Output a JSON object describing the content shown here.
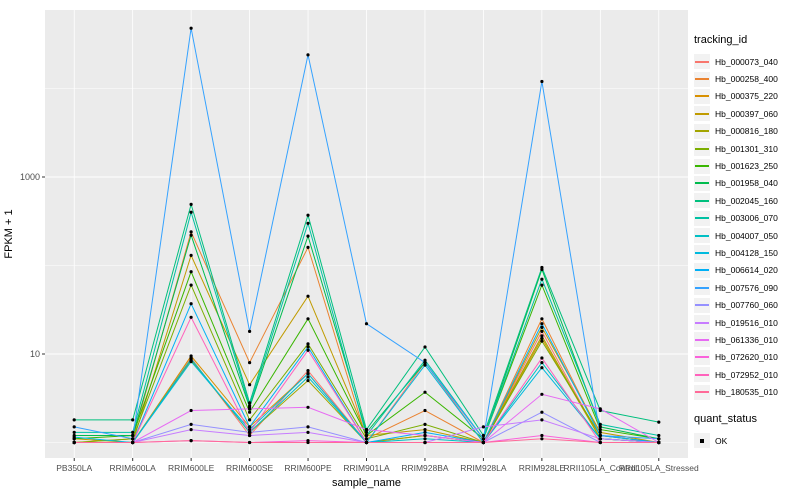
{
  "chart_data": {
    "type": "line",
    "title": "",
    "xlabel": "sample_name",
    "ylabel": "FPKM + 1",
    "y_scale": "log10",
    "y_tick_values": [
      10,
      1000
    ],
    "y_tick_labels": [
      "10",
      "1000"
    ],
    "y_minor_gridline_values": [
      1,
      100,
      10000
    ],
    "ylim": [
      0.65,
      60000
    ],
    "grid": true,
    "panel_bg_color": "#EBEBEB",
    "gridline_color": "#FFFFFF",
    "point_color": "#000000",
    "tick_label_color": "#4D4D4D",
    "legend_position": "right",
    "legend_title": "tracking_id",
    "legend2_title": "quant_status",
    "legend2_items": [
      "OK"
    ],
    "categories": [
      "PB350LA",
      "RRIM600LA",
      "RRIM600LE",
      "RRIM600SE",
      "RRIM600PE",
      "RRIM901LA",
      "RRIM928BA",
      "RRIM928LA",
      "RRIM928LE",
      "RRII105LA_Control",
      "RRII105LA_Stressed"
    ],
    "series": [
      {
        "name": "Hb_000073_040",
        "color": "#F8766D",
        "values": [
          1.0,
          1.0,
          9,
          1.2,
          6.5,
          1.0,
          8,
          1.0,
          18,
          1.1,
          1.0
        ]
      },
      {
        "name": "Hb_000258_400",
        "color": "#EA8331",
        "values": [
          1.0,
          1.1,
          240,
          8,
          160,
          1.1,
          2.3,
          1.0,
          25,
          1.2,
          1.0
        ]
      },
      {
        "name": "Hb_000375_220",
        "color": "#D89000",
        "values": [
          1.0,
          1.0,
          9.5,
          1.5,
          6,
          1.0,
          1.2,
          1.0,
          15,
          1.1,
          1.0
        ]
      },
      {
        "name": "Hb_000397_060",
        "color": "#C09B00",
        "values": [
          1.1,
          1.0,
          130,
          4.5,
          45,
          1.2,
          1.4,
          1.0,
          20,
          1.3,
          1.0
        ]
      },
      {
        "name": "Hb_000816_180",
        "color": "#A3A500",
        "values": [
          1.0,
          1.0,
          8.5,
          1.3,
          5,
          1.0,
          1.2,
          1.0,
          16,
          1.1,
          1.0
        ]
      },
      {
        "name": "Hb_001301_310",
        "color": "#7CAE00",
        "values": [
          1.0,
          1.1,
          60,
          1.8,
          13,
          1.1,
          1.6,
          1.0,
          14,
          1.2,
          1.0
        ]
      },
      {
        "name": "Hb_001623_250",
        "color": "#39B600",
        "values": [
          1.1,
          1.2,
          85,
          2.2,
          25,
          1.2,
          3.7,
          1.1,
          60,
          1.4,
          1.1
        ]
      },
      {
        "name": "Hb_001958_040",
        "color": "#00BB4E",
        "values": [
          1.2,
          1.2,
          220,
          2.5,
          215,
          1.3,
          8,
          1.1,
          90,
          1.5,
          1.1
        ]
      },
      {
        "name": "Hb_002045_160",
        "color": "#00BF7D",
        "values": [
          1.8,
          1.8,
          490,
          2.8,
          370,
          1.4,
          12,
          1.2,
          95,
          2.3,
          1.7
        ]
      },
      {
        "name": "Hb_003006_070",
        "color": "#00C1A3",
        "values": [
          1.3,
          1.3,
          400,
          2.6,
          300,
          1.2,
          8.5,
          1.1,
          70,
          1.6,
          1.2
        ]
      },
      {
        "name": "Hb_004007_050",
        "color": "#00BFC4",
        "values": [
          1.0,
          1.0,
          8.8,
          1.3,
          5.5,
          1.0,
          1.1,
          1.0,
          8,
          1.1,
          1.0
        ]
      },
      {
        "name": "Hb_004128_150",
        "color": "#00BADE",
        "values": [
          1.15,
          1.0,
          8.2,
          1.4,
          6,
          1.0,
          7.5,
          1.0,
          7,
          1.1,
          1.0
        ]
      },
      {
        "name": "Hb_006614_020",
        "color": "#00B0F6",
        "values": [
          1.0,
          1.0,
          37,
          1.5,
          12,
          1.0,
          1.3,
          1.0,
          22,
          1.2,
          1.0
        ]
      },
      {
        "name": "Hb_007576_090",
        "color": "#35A2FF",
        "values": [
          1.5,
          1.1,
          48000,
          18,
          24000,
          22,
          8,
          1.1,
          12000,
          1.2,
          1.1
        ]
      },
      {
        "name": "Hb_007760_060",
        "color": "#9590FF",
        "values": [
          1.0,
          1.0,
          1.6,
          1.3,
          1.5,
          1.0,
          1.0,
          1.0,
          2.2,
          1.0,
          1.0
        ]
      },
      {
        "name": "Hb_019516_010",
        "color": "#C77CFF",
        "values": [
          1.0,
          1.0,
          1.4,
          1.2,
          1.3,
          1.0,
          1.0,
          1.5,
          1.8,
          1.1,
          1.0
        ]
      },
      {
        "name": "Hb_061336_010",
        "color": "#E76BF3",
        "values": [
          1.0,
          1.0,
          2.3,
          2.4,
          2.5,
          1.4,
          1.2,
          1.0,
          3.5,
          2.4,
          1.0
        ]
      },
      {
        "name": "Hb_072620_010",
        "color": "#FA62DB",
        "values": [
          1.0,
          1.0,
          1.05,
          1.0,
          1.05,
          1.0,
          1.0,
          1.0,
          1.2,
          1.0,
          1.0
        ]
      },
      {
        "name": "Hb_072952_010",
        "color": "#FF62BC",
        "values": [
          1.0,
          1.0,
          26,
          1.3,
          11,
          1.0,
          1.0,
          1.0,
          9,
          1.0,
          1.0
        ]
      },
      {
        "name": "Hb_180535_010",
        "color": "#FF6A98",
        "values": [
          1.0,
          1.0,
          1.05,
          1.0,
          1.0,
          1.0,
          1.0,
          1.0,
          1.1,
          1.0,
          1.0
        ]
      }
    ]
  }
}
